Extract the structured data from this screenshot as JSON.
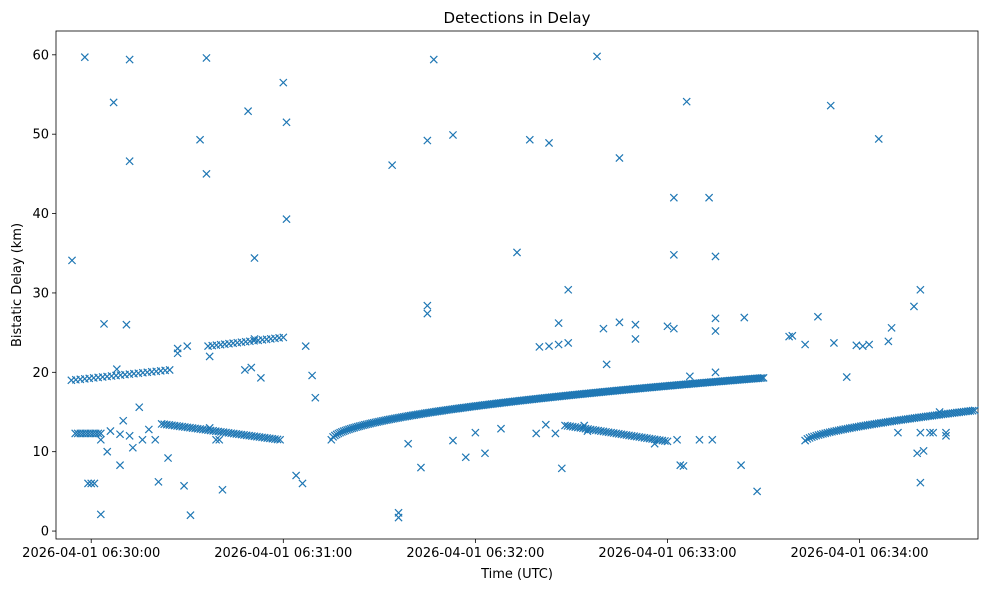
{
  "chart_data": {
    "type": "scatter",
    "title": "Detections in Delay",
    "xlabel": "Time (UTC)",
    "ylabel": "Bistatic Delay (km)",
    "marker": "x",
    "color": "#1f77b4",
    "x_unit": "seconds after 2026-04-01 06:29:00 UTC",
    "xlim": [
      49,
      337
    ],
    "ylim": [
      -1,
      63
    ],
    "x_ticks": [
      {
        "value": 60,
        "label": "2026-04-01 06:30:00"
      },
      {
        "value": 120,
        "label": "2026-04-01 06:31:00"
      },
      {
        "value": 180,
        "label": "2026-04-01 06:32:00"
      },
      {
        "value": 240,
        "label": "2026-04-01 06:33:00"
      },
      {
        "value": 300,
        "label": "2026-04-01 06:34:00"
      }
    ],
    "y_ticks": [
      0,
      10,
      20,
      30,
      40,
      50,
      60
    ],
    "tracks": [
      {
        "name": "track-a-upper",
        "x_start": 53.8,
        "x_end": 84.5,
        "y_start": 19.0,
        "y_end": 20.3,
        "spacing": 1.4
      },
      {
        "name": "track-a-lower",
        "x_start": 55.0,
        "x_end": 63.0,
        "y_start": 12.3,
        "y_end": 12.3,
        "spacing": 0.8
      },
      {
        "name": "track-b-descending",
        "x_start": 82.0,
        "x_end": 119.0,
        "y_start": 13.5,
        "y_end": 11.5,
        "spacing": 0.8
      },
      {
        "name": "track-c-upper",
        "x_start": 96.5,
        "x_end": 120.0,
        "y_start": 23.3,
        "y_end": 24.4,
        "spacing": 1.3
      },
      {
        "name": "track-d-rising",
        "x_start": 135.0,
        "x_end": 270.0,
        "y_start": 11.5,
        "y_end": 19.3,
        "spacing": 0.55,
        "curve": 1.8
      },
      {
        "name": "track-e-descending",
        "x_start": 208.0,
        "x_end": 240.0,
        "y_start": 13.3,
        "y_end": 11.3,
        "spacing": 0.8
      },
      {
        "name": "track-f-rising",
        "x_start": 283.0,
        "x_end": 336.0,
        "y_start": 11.4,
        "y_end": 15.2,
        "spacing": 0.7,
        "curve": 1.5
      }
    ],
    "points": [
      [
        54,
        34.1
      ],
      [
        58,
        59.7
      ],
      [
        64,
        26.1
      ],
      [
        67,
        54.0
      ],
      [
        71,
        26.0
      ],
      [
        72,
        59.4
      ],
      [
        72,
        46.6
      ],
      [
        87,
        22.4
      ],
      [
        87,
        23.0
      ],
      [
        84,
        9.2
      ],
      [
        81,
        6.2
      ],
      [
        89,
        5.7
      ],
      [
        90,
        23.3
      ],
      [
        94,
        49.3
      ],
      [
        96,
        59.6
      ],
      [
        96,
        45.0
      ],
      [
        97,
        22.0
      ],
      [
        97,
        13.0
      ],
      [
        101,
        5.2
      ],
      [
        108,
        20.3
      ],
      [
        109,
        52.9
      ],
      [
        110,
        20.6
      ],
      [
        111,
        34.4
      ],
      [
        111,
        24.2
      ],
      [
        113,
        19.3
      ],
      [
        120,
        56.5
      ],
      [
        121,
        51.5
      ],
      [
        121,
        39.3
      ],
      [
        124,
        7.0
      ],
      [
        126,
        6.0
      ],
      [
        127,
        23.3
      ],
      [
        129,
        19.6
      ],
      [
        130,
        16.8
      ],
      [
        59,
        6.0
      ],
      [
        61,
        6.0
      ],
      [
        63,
        2.1
      ],
      [
        63,
        11.5
      ],
      [
        65,
        10.0
      ],
      [
        66,
        12.6
      ],
      [
        68,
        20.4
      ],
      [
        69,
        8.3
      ],
      [
        69,
        12.2
      ],
      [
        72,
        12.0
      ],
      [
        73,
        10.5
      ],
      [
        75,
        15.6
      ],
      [
        60,
        6.0
      ],
      [
        70,
        13.9
      ],
      [
        76,
        11.5
      ],
      [
        78,
        12.8
      ],
      [
        80,
        11.5
      ],
      [
        91,
        2.0
      ],
      [
        99,
        11.5
      ],
      [
        100,
        11.5
      ],
      [
        154,
        46.1
      ],
      [
        156,
        2.3
      ],
      [
        156,
        1.7
      ],
      [
        159,
        11.0
      ],
      [
        163,
        8.0
      ],
      [
        165,
        28.4
      ],
      [
        165,
        27.4
      ],
      [
        165,
        49.2
      ],
      [
        167,
        59.4
      ],
      [
        173,
        49.9
      ],
      [
        173,
        11.4
      ],
      [
        177,
        9.3
      ],
      [
        180,
        12.4
      ],
      [
        183,
        9.8
      ],
      [
        188,
        12.9
      ],
      [
        193,
        35.1
      ],
      [
        197,
        49.3
      ],
      [
        199,
        12.3
      ],
      [
        200,
        23.2
      ],
      [
        202,
        13.4
      ],
      [
        203,
        48.9
      ],
      [
        203,
        23.3
      ],
      [
        205,
        12.3
      ],
      [
        206,
        23.5
      ],
      [
        206,
        26.2
      ],
      [
        209,
        30.4
      ],
      [
        209,
        23.7
      ],
      [
        207,
        7.9
      ],
      [
        215,
        12.6
      ],
      [
        214,
        13.3
      ],
      [
        218,
        59.8
      ],
      [
        220,
        25.5
      ],
      [
        221,
        21.0
      ],
      [
        225,
        47.0
      ],
      [
        225,
        26.3
      ],
      [
        230,
        26.0
      ],
      [
        230,
        24.2
      ],
      [
        236,
        11.0
      ],
      [
        240,
        25.8
      ],
      [
        242,
        25.5
      ],
      [
        242,
        42.0
      ],
      [
        242,
        34.8
      ],
      [
        243,
        11.5
      ],
      [
        244,
        8.3
      ],
      [
        245,
        8.2
      ],
      [
        246,
        54.1
      ],
      [
        247,
        19.5
      ],
      [
        250,
        11.5
      ],
      [
        253,
        42.0
      ],
      [
        254,
        11.5
      ],
      [
        255,
        34.6
      ],
      [
        255,
        26.8
      ],
      [
        255,
        25.2
      ],
      [
        255,
        20.0
      ],
      [
        263,
        8.3
      ],
      [
        264,
        26.9
      ],
      [
        268,
        5.0
      ],
      [
        278,
        24.5
      ],
      [
        279,
        24.6
      ],
      [
        283,
        23.5
      ],
      [
        287,
        27.0
      ],
      [
        291,
        53.6
      ],
      [
        292,
        23.7
      ],
      [
        296,
        19.4
      ],
      [
        299,
        23.4
      ],
      [
        301,
        23.3
      ],
      [
        303,
        23.5
      ],
      [
        306,
        49.4
      ],
      [
        309,
        23.9
      ],
      [
        310,
        25.6
      ],
      [
        312,
        12.4
      ],
      [
        317,
        28.3
      ],
      [
        319,
        30.4
      ],
      [
        318,
        9.8
      ],
      [
        319,
        6.1
      ],
      [
        320,
        10.1
      ],
      [
        323,
        12.4
      ],
      [
        327,
        12.4
      ],
      [
        327,
        12.0
      ],
      [
        325,
        15.0
      ],
      [
        319,
        12.4
      ],
      [
        322,
        12.4
      ]
    ]
  }
}
